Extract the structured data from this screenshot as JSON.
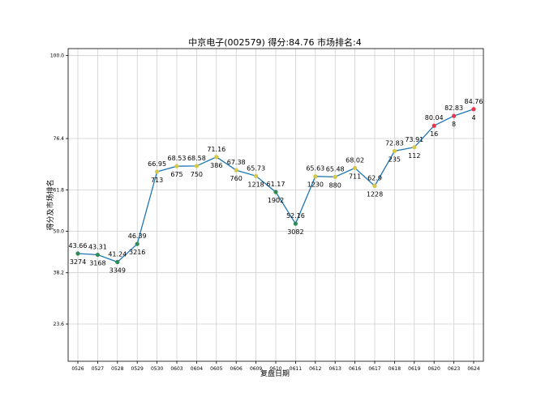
{
  "chart_data": {
    "type": "line",
    "title": "中京电子(002579) 得分:84.76  市场排名:4",
    "xlabel": "复盘日期",
    "ylabel": "得分及市场排名",
    "categories": [
      "0526",
      "0527",
      "0528",
      "0529",
      "0530",
      "0603",
      "0604",
      "0605",
      "0606",
      "0609",
      "0610",
      "0611",
      "0612",
      "0613",
      "0616",
      "0617",
      "0618",
      "0619",
      "0620",
      "0623",
      "0624"
    ],
    "yticks": [
      23.6,
      38.2,
      50.0,
      61.8,
      76.4,
      100.0
    ],
    "ytick_labels": [
      "23.6",
      "38.2",
      "50.0",
      "61.8",
      "76.4",
      "100.0"
    ],
    "ylim": [
      13,
      102
    ],
    "grid": true,
    "series": [
      {
        "values": [
          43.66,
          43.31,
          41.24,
          46.39,
          66.95,
          68.53,
          68.58,
          71.16,
          67.38,
          65.73,
          61.17,
          52.16,
          65.63,
          65.48,
          68.02,
          62.9,
          72.83,
          73.91,
          80.04,
          82.83,
          84.76
        ],
        "score_labels": [
          "43.66",
          "43.31",
          "41.24",
          "46.39",
          "66.95",
          "68.53",
          "68.58",
          "71.16",
          "67.38",
          "65.73",
          "61.17",
          "52.16",
          "65.63",
          "65.48",
          "68.02",
          "62.9",
          "72.83",
          "73.91",
          "80.04",
          "82.83",
          "84.76"
        ],
        "ranks": [
          "3274",
          "3168",
          "3349",
          "3216",
          "713",
          "675",
          "750",
          "386",
          "760",
          "1218",
          "1902",
          "3082",
          "1230",
          "880",
          "711",
          "1228",
          "235",
          "112",
          "16",
          "8",
          "4"
        ],
        "marker_colors": [
          "#2e8b57",
          "#2e8b57",
          "#2e8b57",
          "#2e8b57",
          "#d4c84a",
          "#d4c84a",
          "#d4c84a",
          "#d4c84a",
          "#d4c84a",
          "#d4c84a",
          "#2e8b57",
          "#2e8b57",
          "#d4c84a",
          "#d4c84a",
          "#d4c84a",
          "#d4c84a",
          "#d4c84a",
          "#d4c84a",
          "#e8364f",
          "#e8364f",
          "#e8364f"
        ]
      }
    ],
    "colors": {
      "line": "#1f77b4",
      "grid": "#cfcfcf"
    }
  }
}
